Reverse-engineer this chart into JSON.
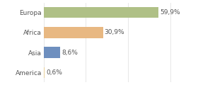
{
  "categories": [
    "Europa",
    "Africa",
    "Asia",
    "America"
  ],
  "values": [
    59.9,
    30.9,
    8.6,
    0.6
  ],
  "labels": [
    "59,9%",
    "30,9%",
    "8,6%",
    "0,6%"
  ],
  "bar_colors": [
    "#afc086",
    "#e8b882",
    "#6e8fbf",
    "#e8d09a"
  ],
  "background_color": "#ffffff",
  "xlim": [
    0,
    68
  ],
  "bar_height": 0.55,
  "label_fontsize": 6.5,
  "tick_fontsize": 6.5,
  "grid_lines": [
    0,
    22,
    44,
    66
  ],
  "grid_color": "#dddddd",
  "text_color": "#555555"
}
